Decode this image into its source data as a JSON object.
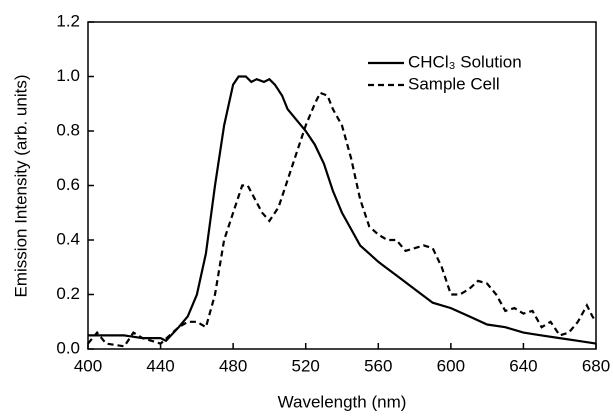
{
  "chart_data": {
    "type": "line",
    "xlabel": "Wavelength (nm)",
    "ylabel": "Emission Intensity (arb. units)",
    "xlim": [
      400,
      680
    ],
    "xticks": [
      400,
      440,
      480,
      520,
      560,
      600,
      640,
      680
    ],
    "ylim": [
      0,
      1.2
    ],
    "yticks": [
      {
        "value": 0,
        "label": "0.0"
      },
      0.2,
      0.4,
      0.6,
      0.8,
      {
        "value": 1,
        "label": "1.0"
      },
      1.2
    ],
    "legend": "upper right",
    "series": [
      {
        "name": "CHCl₃ Solution",
        "color": "#000000",
        "dash": "solid",
        "x": [
          400,
          405,
          410,
          420,
          430,
          440,
          443,
          450,
          455,
          460,
          465,
          470,
          475,
          480,
          483,
          487,
          490,
          493,
          497,
          500,
          503,
          507,
          510,
          515,
          520,
          525,
          530,
          535,
          540,
          545,
          550,
          555,
          560,
          570,
          580,
          590,
          600,
          610,
          620,
          630,
          640,
          650,
          660,
          670,
          680
        ],
        "values": [
          0.05,
          0.05,
          0.05,
          0.05,
          0.04,
          0.04,
          0.03,
          0.08,
          0.12,
          0.2,
          0.35,
          0.6,
          0.82,
          0.97,
          1.0,
          1.0,
          0.98,
          0.99,
          0.98,
          0.99,
          0.97,
          0.93,
          0.88,
          0.84,
          0.8,
          0.75,
          0.68,
          0.58,
          0.5,
          0.44,
          0.38,
          0.35,
          0.32,
          0.27,
          0.22,
          0.17,
          0.15,
          0.12,
          0.09,
          0.08,
          0.06,
          0.05,
          0.04,
          0.03,
          0.02
        ]
      },
      {
        "name": "Sample Cell",
        "color": "#000000",
        "dash": "dashed",
        "x": [
          400,
          405,
          410,
          420,
          425,
          430,
          440,
          445,
          450,
          455,
          460,
          465,
          470,
          475,
          480,
          485,
          488,
          492,
          496,
          500,
          505,
          510,
          515,
          520,
          525,
          528,
          532,
          535,
          540,
          545,
          550,
          555,
          560,
          565,
          570,
          575,
          580,
          585,
          590,
          595,
          600,
          605,
          610,
          615,
          620,
          625,
          630,
          635,
          640,
          645,
          650,
          655,
          660,
          665,
          670,
          675,
          678,
          680
        ],
        "values": [
          0.02,
          0.06,
          0.02,
          0.01,
          0.06,
          0.04,
          0.02,
          0.05,
          0.08,
          0.1,
          0.1,
          0.08,
          0.2,
          0.4,
          0.5,
          0.6,
          0.6,
          0.55,
          0.5,
          0.47,
          0.52,
          0.62,
          0.72,
          0.82,
          0.9,
          0.94,
          0.93,
          0.88,
          0.82,
          0.7,
          0.55,
          0.45,
          0.42,
          0.4,
          0.4,
          0.36,
          0.37,
          0.38,
          0.37,
          0.3,
          0.2,
          0.2,
          0.22,
          0.25,
          0.24,
          0.2,
          0.14,
          0.15,
          0.13,
          0.14,
          0.08,
          0.1,
          0.05,
          0.06,
          0.1,
          0.16,
          0.12,
          0.1
        ]
      }
    ]
  }
}
